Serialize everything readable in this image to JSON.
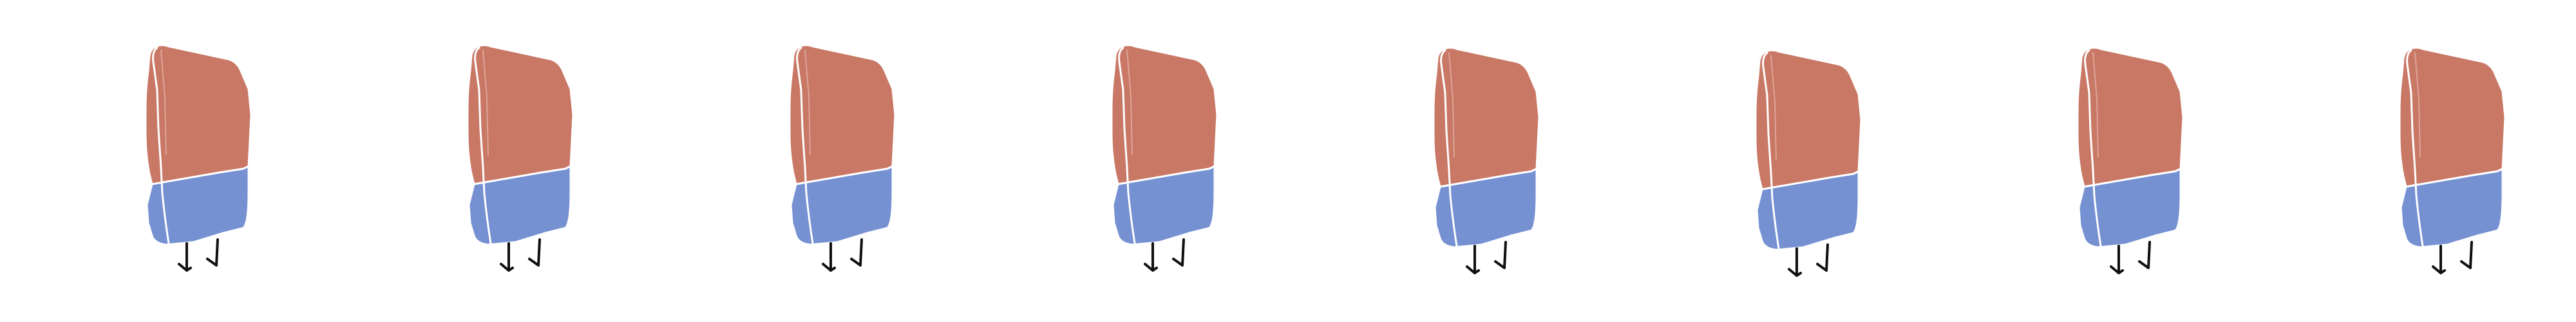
{
  "sprite_sheet": {
    "frame_count": 8,
    "character": "eraser-character",
    "colors": {
      "body_top": "#c97866",
      "body_bottom": "#7591d2",
      "outline": "#ffffff",
      "edge": "#e9c3b8",
      "legs": "#111111"
    },
    "frames": [
      {
        "name": "frame-1"
      },
      {
        "name": "frame-2"
      },
      {
        "name": "frame-3"
      },
      {
        "name": "frame-4"
      },
      {
        "name": "frame-5"
      },
      {
        "name": "frame-6"
      },
      {
        "name": "frame-7"
      },
      {
        "name": "frame-8"
      }
    ]
  }
}
